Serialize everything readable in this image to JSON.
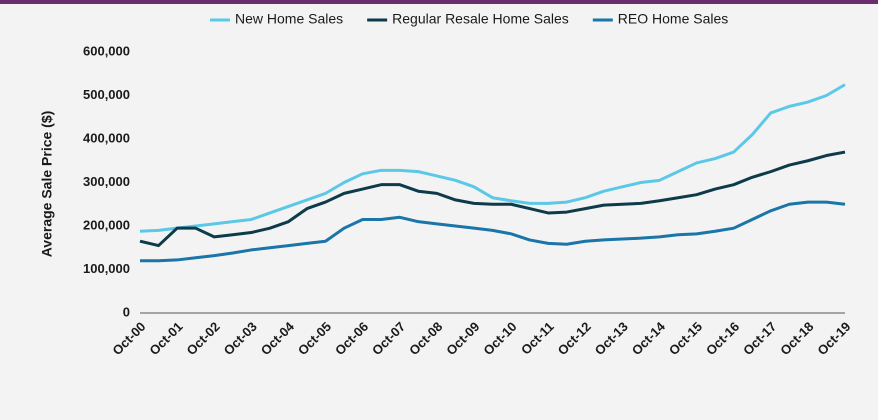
{
  "chart_data": {
    "type": "line",
    "ylabel": "Average Sale Price ($)",
    "categories": [
      "Oct-00",
      null,
      "Oct-01",
      null,
      "Oct-02",
      null,
      "Oct-03",
      null,
      "Oct-04",
      null,
      "Oct-05",
      null,
      "Oct-06",
      null,
      "Oct-07",
      null,
      "Oct-08",
      null,
      "Oct-09",
      null,
      "Oct-10",
      null,
      "Oct-11",
      null,
      "Oct-12",
      null,
      "Oct-13",
      null,
      "Oct-14",
      null,
      "Oct-15",
      null,
      "Oct-16",
      null,
      "Oct-17",
      null,
      "Oct-18",
      null,
      "Oct-19"
    ],
    "series": [
      {
        "name": "New Home Sales",
        "color": "#5cc8e8",
        "values": [
          188000,
          190000,
          195000,
          200000,
          205000,
          210000,
          215000,
          230000,
          245000,
          260000,
          275000,
          300000,
          320000,
          328000,
          328000,
          325000,
          315000,
          305000,
          290000,
          265000,
          258000,
          252000,
          252000,
          255000,
          265000,
          280000,
          290000,
          300000,
          305000,
          325000,
          345000,
          355000,
          370000,
          410000,
          460000,
          475000,
          485000,
          500000,
          525000
        ]
      },
      {
        "name": "Regular Resale Home Sales",
        "color": "#0d3b4a",
        "values": [
          165000,
          155000,
          195000,
          195000,
          175000,
          180000,
          185000,
          195000,
          210000,
          240000,
          255000,
          275000,
          285000,
          295000,
          295000,
          280000,
          275000,
          260000,
          252000,
          250000,
          250000,
          240000,
          230000,
          232000,
          240000,
          248000,
          250000,
          252000,
          258000,
          265000,
          272000,
          285000,
          295000,
          312000,
          325000,
          340000,
          350000,
          362000,
          370000
        ]
      },
      {
        "name": "REO Home Sales",
        "color": "#1a75a8",
        "values": [
          120000,
          120000,
          122000,
          127000,
          132000,
          138000,
          145000,
          150000,
          155000,
          160000,
          165000,
          195000,
          215000,
          215000,
          220000,
          210000,
          205000,
          200000,
          195000,
          190000,
          182000,
          168000,
          160000,
          158000,
          165000,
          168000,
          170000,
          172000,
          175000,
          180000,
          182000,
          188000,
          195000,
          215000,
          235000,
          250000,
          255000,
          255000,
          250000
        ]
      }
    ],
    "ylim": [
      0,
      600000
    ],
    "yticks": [
      0,
      {
        "value": 100000,
        "label": "100,000"
      },
      {
        "value": 200000,
        "label": "200,000"
      },
      {
        "value": 300000,
        "label": "300,000"
      },
      {
        "value": 400000,
        "label": "400,000"
      },
      {
        "value": 500000,
        "label": "500,000"
      },
      {
        "value": 600000,
        "label": "600,000"
      }
    ],
    "legend": "top"
  }
}
